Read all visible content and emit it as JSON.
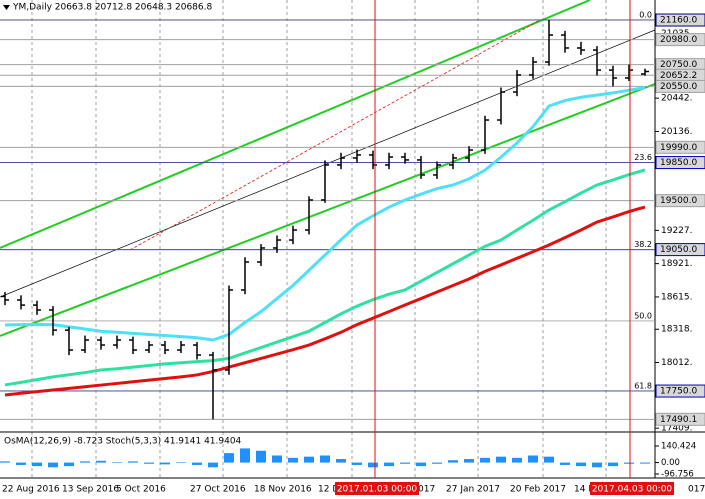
{
  "chart_data": {
    "type": "ohlc",
    "title": "YM,Daily  20663.8 20712.8 20648.3 20686.8",
    "color": "#000000",
    "open": [
      18620,
      18587,
      18540,
      18495,
      18310,
      18127,
      18219,
      18173,
      18219,
      18127,
      18173,
      18127,
      18173,
      18081,
      17944,
      18679,
      18936,
      19065,
      19138,
      19230,
      19506,
      19828,
      19892,
      19920,
      19828,
      19901,
      19874,
      19736,
      19828,
      19892,
      19965,
      20241,
      20498,
      20655,
      20774,
      21022,
      20903,
      20884,
      20700,
      20627,
      20663.8
    ],
    "high": [
      18660,
      18630,
      18580,
      18530,
      18340,
      18260,
      18250,
      18260,
      18250,
      18210,
      18210,
      18210,
      18200,
      18110,
      18720,
      18980,
      19100,
      19180,
      19270,
      19540,
      19870,
      19940,
      19970,
      19960,
      19940,
      19940,
      19910,
      19860,
      19930,
      20000,
      20280,
      20540,
      20700,
      20820,
      21160,
      21060,
      20960,
      20920,
      20740,
      20750,
      20712.8
    ],
    "low": [
      18540,
      18500,
      18450,
      18260,
      18080,
      18100,
      18130,
      18140,
      18090,
      18100,
      18090,
      18100,
      18040,
      17490.1,
      17900,
      18640,
      18900,
      19020,
      19100,
      19190,
      19480,
      19790,
      19850,
      19790,
      19790,
      19840,
      19700,
      19700,
      19790,
      19850,
      19930,
      20200,
      20460,
      20620,
      20740,
      20860,
      20840,
      20650,
      20550,
      20600,
      20648.3
    ],
    "close": [
      18587,
      18540,
      18495,
      18310,
      18127,
      18219,
      18173,
      18219,
      18127,
      18173,
      18127,
      18173,
      18081,
      17944,
      18679,
      18936,
      19065,
      19138,
      19230,
      19506,
      19828,
      19892,
      19920,
      19828,
      19901,
      19874,
      19736,
      19828,
      19892,
      19965,
      20241,
      20498,
      20655,
      20774,
      21022,
      20903,
      20884,
      20700,
      20627,
      20700,
      20686.8
    ],
    "moving_averages": [
      {
        "color": "#4ee0f5",
        "values": [
          18357,
          18360,
          18362,
          18360,
          18340,
          18320,
          18300,
          18290,
          18280,
          18270,
          18260,
          18250,
          18240,
          18219,
          18270,
          18380,
          18480,
          18600,
          18720,
          18860,
          19000,
          19140,
          19276,
          19360,
          19440,
          19506,
          19560,
          19610,
          19644,
          19700,
          19780,
          19900,
          20030,
          20180,
          20370,
          20420,
          20450,
          20470,
          20490,
          20515,
          20540
        ]
      },
      {
        "color": "#2fe0a0",
        "values": [
          17806,
          17830,
          17855,
          17880,
          17900,
          17920,
          17944,
          17955,
          17970,
          17985,
          18000,
          18010,
          18020,
          18030,
          18050,
          18100,
          18150,
          18200,
          18250,
          18300,
          18380,
          18460,
          18530,
          18590,
          18640,
          18679,
          18760,
          18840,
          18920,
          19000,
          19080,
          19138,
          19230,
          19320,
          19414,
          19490,
          19570,
          19644,
          19690,
          19740,
          19782
        ]
      },
      {
        "color": "#e01010",
        "values": [
          17714,
          17730,
          17745,
          17760,
          17775,
          17790,
          17805,
          17820,
          17835,
          17850,
          17865,
          17880,
          17898,
          17930,
          17970,
          18010,
          18050,
          18090,
          18130,
          18173,
          18230,
          18290,
          18360,
          18420,
          18480,
          18541,
          18600,
          18660,
          18720,
          18780,
          18850,
          18909,
          18970,
          19030,
          19092,
          19160,
          19230,
          19303,
          19350,
          19400,
          19441
        ]
      }
    ],
    "ylim": [
      17392,
      21344
    ],
    "yticks": [
      {
        "value": 21035,
        "label": "21035."
      },
      {
        "value": 20442,
        "label": "20442."
      },
      {
        "value": 20136,
        "label": "20136."
      },
      {
        "value": 19227,
        "label": "19227."
      },
      {
        "value": 18921,
        "label": "18921."
      },
      {
        "value": 18615,
        "label": "18615."
      },
      {
        "value": 18318,
        "label": "18318."
      },
      {
        "value": 18012,
        "label": "18012."
      },
      {
        "value": 17409,
        "label": "17409."
      }
    ],
    "price_levels": [
      {
        "value": 21160,
        "label": "21160.0",
        "color": "#000080"
      },
      {
        "value": 20980,
        "label": "20980.0",
        "color": "#a0a0a0"
      },
      {
        "value": 20750,
        "label": "20750.0",
        "color": "#a0a0a0"
      },
      {
        "value": 20652.2,
        "label": "20652.2",
        "color": "#a0a0a0"
      },
      {
        "value": 20550,
        "label": "20550.0",
        "color": "#a0a0a0"
      },
      {
        "value": 19990,
        "label": "19990.0",
        "color": "#a0a0a0"
      },
      {
        "value": 19850,
        "label": "19850.0",
        "color": "#0000c0"
      },
      {
        "value": 19500,
        "label": "19500.0",
        "color": "#a0a0a0"
      },
      {
        "value": 19050,
        "label": "19050.0",
        "color": "#0000c0"
      },
      {
        "value": 17750,
        "label": "17750.0",
        "color": "#0000c0"
      },
      {
        "value": 17490.1,
        "label": "17490.1",
        "color": "#a0a0a0"
      }
    ],
    "fib_levels": [
      {
        "value": 21160,
        "label": "0.0"
      },
      {
        "value": 19850,
        "label": "23.6"
      },
      {
        "value": 19050,
        "label": "38.2"
      },
      {
        "value": 18394,
        "label": "50.0"
      },
      {
        "value": 17750,
        "label": "61.8"
      }
    ],
    "vlines": [
      {
        "label": "2017.01.03 00:00"
      },
      {
        "label": "2017.04.03 00:00"
      }
    ],
    "vline_color": "#e01010",
    "x_labels": [
      "22 Aug 2016",
      "13 Sep 2016",
      "5 Oct 2016",
      "27 Oct 2016",
      "18 Nov 2016",
      "12 D",
      "017",
      "27 Jan 2017",
      "20 Feb 2017",
      "14 M",
      "017"
    ],
    "indicator": {
      "title": "OsMA(12,26,9) -8.723  Stoch(5,3,3) 41.9141 41.9404",
      "color": "#1e90ff",
      "values": [
        10,
        -20,
        -30,
        -40,
        -30,
        10,
        15,
        5,
        10,
        -10,
        -15,
        5,
        -20,
        -40,
        80,
        120,
        100,
        60,
        40,
        50,
        60,
        30,
        -20,
        -40,
        -30,
        -10,
        -30,
        -10,
        20,
        30,
        40,
        50,
        40,
        60,
        50,
        -20,
        -30,
        -40,
        -30,
        -10,
        -8.723
      ],
      "ylim": [
        -96.756,
        140.424
      ],
      "yticks": [
        140.424,
        {
          "value": 0,
          "label": "0.00"
        },
        -96.756
      ]
    }
  }
}
